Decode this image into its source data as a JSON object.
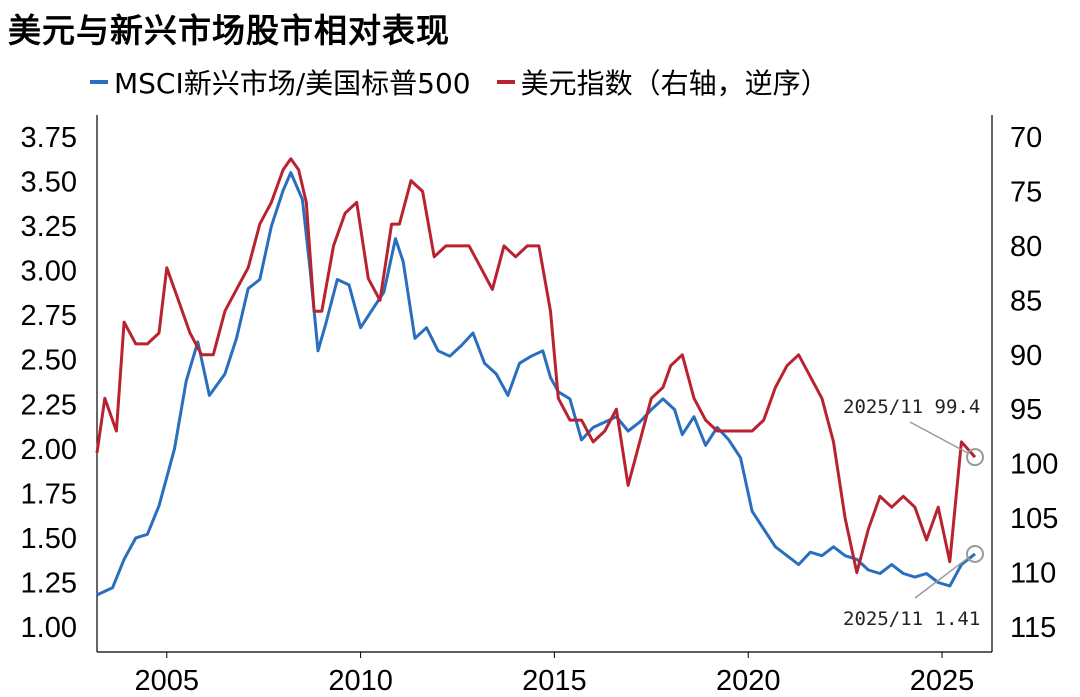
{
  "chart_data": {
    "type": "line",
    "title": "美元与新兴市场股市相对表现",
    "x_ticks": [
      "2005",
      "2010",
      "2015",
      "2020",
      "2025"
    ],
    "left_axis": {
      "ylim": [
        1.0,
        3.75
      ],
      "ticks": [
        "1.00",
        "1.25",
        "1.50",
        "1.75",
        "2.00",
        "2.25",
        "2.50",
        "2.75",
        "3.00",
        "3.25",
        "3.50",
        "3.75"
      ]
    },
    "right_axis": {
      "ylim": [
        70,
        115
      ],
      "inverted": true,
      "ticks": [
        "70",
        "75",
        "80",
        "85",
        "90",
        "95",
        "100",
        "105",
        "110",
        "115"
      ]
    },
    "grid": false,
    "legend_position": "top",
    "series": [
      {
        "name": "MSCI新兴市场/美国标普500",
        "axis": "left",
        "color": "#2a6ebf",
        "x": [
          2003.2,
          2003.6,
          2003.9,
          2004.2,
          2004.5,
          2004.8,
          2005.2,
          2005.5,
          2005.8,
          2006.1,
          2006.5,
          2006.8,
          2007.1,
          2007.4,
          2007.7,
          2008.0,
          2008.2,
          2008.5,
          2008.7,
          2008.9,
          2009.1,
          2009.4,
          2009.7,
          2010.0,
          2010.3,
          2010.6,
          2010.9,
          2011.1,
          2011.4,
          2011.7,
          2012.0,
          2012.3,
          2012.6,
          2012.9,
          2013.2,
          2013.5,
          2013.8,
          2014.1,
          2014.4,
          2014.7,
          2014.9,
          2015.1,
          2015.4,
          2015.7,
          2016.0,
          2016.3,
          2016.6,
          2016.9,
          2017.2,
          2017.5,
          2017.8,
          2018.1,
          2018.3,
          2018.6,
          2018.9,
          2019.2,
          2019.5,
          2019.8,
          2020.1,
          2020.4,
          2020.7,
          2021.0,
          2021.3,
          2021.6,
          2021.9,
          2022.2,
          2022.5,
          2022.8,
          2023.1,
          2023.4,
          2023.7,
          2024.0,
          2024.3,
          2024.6,
          2024.9,
          2025.2,
          2025.5,
          2025.85
        ],
        "values": [
          1.18,
          1.22,
          1.38,
          1.5,
          1.52,
          1.68,
          2.0,
          2.38,
          2.6,
          2.3,
          2.42,
          2.62,
          2.9,
          2.95,
          3.25,
          3.45,
          3.55,
          3.4,
          3.0,
          2.55,
          2.7,
          2.95,
          2.92,
          2.68,
          2.78,
          2.88,
          3.18,
          3.05,
          2.62,
          2.68,
          2.55,
          2.52,
          2.58,
          2.65,
          2.48,
          2.42,
          2.3,
          2.48,
          2.52,
          2.55,
          2.4,
          2.32,
          2.28,
          2.05,
          2.12,
          2.15,
          2.18,
          2.1,
          2.15,
          2.22,
          2.28,
          2.22,
          2.08,
          2.18,
          2.02,
          2.12,
          2.05,
          1.95,
          1.65,
          1.55,
          1.45,
          1.4,
          1.35,
          1.42,
          1.4,
          1.45,
          1.4,
          1.38,
          1.32,
          1.3,
          1.35,
          1.3,
          1.28,
          1.3,
          1.25,
          1.23,
          1.35,
          1.41
        ]
      },
      {
        "name": "美元指数（右轴，逆序）",
        "axis": "right",
        "color": "#b8232f",
        "x": [
          2003.2,
          2003.4,
          2003.7,
          2003.9,
          2004.2,
          2004.5,
          2004.8,
          2005.0,
          2005.3,
          2005.6,
          2005.9,
          2006.2,
          2006.5,
          2006.8,
          2007.1,
          2007.4,
          2007.7,
          2008.0,
          2008.2,
          2008.4,
          2008.6,
          2008.8,
          2009.0,
          2009.3,
          2009.6,
          2009.9,
          2010.2,
          2010.5,
          2010.8,
          2011.0,
          2011.3,
          2011.6,
          2011.9,
          2012.2,
          2012.5,
          2012.8,
          2013.1,
          2013.4,
          2013.7,
          2014.0,
          2014.3,
          2014.6,
          2014.9,
          2015.1,
          2015.4,
          2015.7,
          2016.0,
          2016.3,
          2016.6,
          2016.9,
          2017.2,
          2017.5,
          2017.8,
          2018.0,
          2018.3,
          2018.6,
          2018.9,
          2019.2,
          2019.5,
          2019.8,
          2020.1,
          2020.4,
          2020.7,
          2021.0,
          2021.3,
          2021.6,
          2021.9,
          2022.2,
          2022.5,
          2022.8,
          2023.1,
          2023.4,
          2023.7,
          2024.0,
          2024.3,
          2024.6,
          2024.9,
          2025.2,
          2025.5,
          2025.85
        ],
        "values": [
          99,
          94,
          97,
          87,
          89,
          89,
          88,
          82,
          85,
          88,
          90,
          90,
          86,
          84,
          82,
          78,
          76,
          73,
          72,
          73,
          76,
          86,
          86,
          80,
          77,
          76,
          83,
          85,
          78,
          78,
          74,
          75,
          81,
          80,
          80,
          80,
          82,
          84,
          80,
          81,
          80,
          80,
          86,
          94,
          96,
          96,
          98,
          97,
          95,
          102,
          98,
          94,
          93,
          91,
          90,
          94,
          96,
          97,
          97,
          97,
          97,
          96,
          93,
          91,
          90,
          92,
          94,
          98,
          105,
          110,
          106,
          103,
          104,
          103,
          104,
          107,
          104,
          109,
          98,
          99.4
        ]
      }
    ],
    "annotations": [
      {
        "text": "2025/11  99.4",
        "series": "美元指数（右轴，逆序）",
        "x": 2025.85,
        "y": 99.4
      },
      {
        "text": "2025/11  1.41",
        "series": "MSCI新兴市场/美国标普500",
        "x": 2025.85,
        "y": 1.41
      }
    ]
  }
}
